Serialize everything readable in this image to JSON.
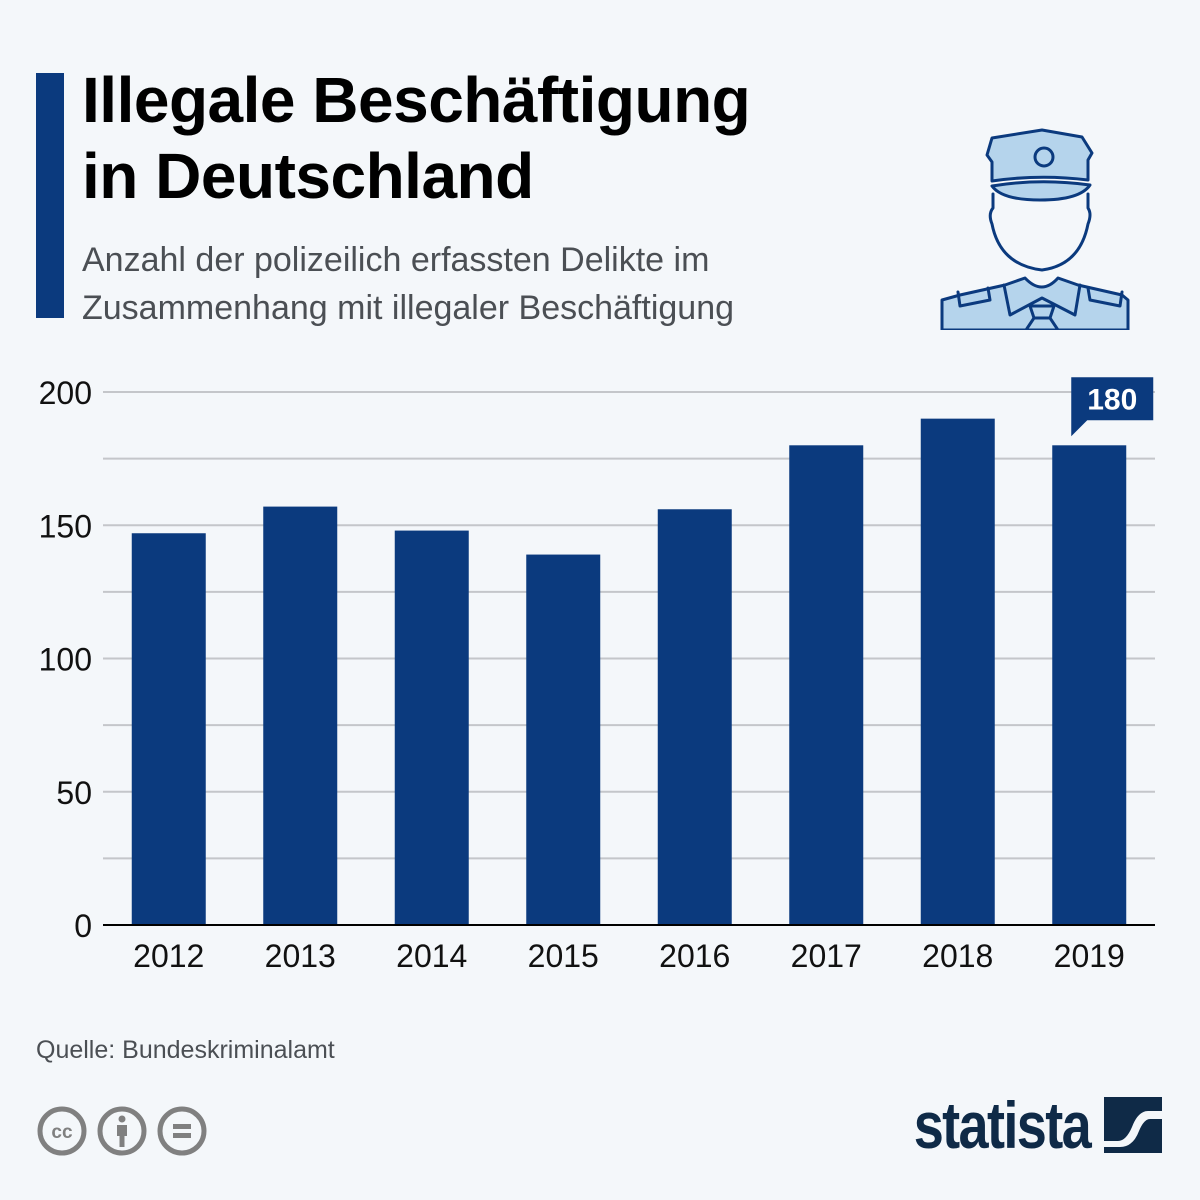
{
  "header": {
    "title_line1": "Illegale Beschäftigung",
    "title_line2": "in Deutschland",
    "subtitle_line1": "Anzahl der polizeilich erfassten Delikte im",
    "subtitle_line2": "Zusammenhang mit illegaler Beschäftigung",
    "illustration_icon": "police-officer-icon"
  },
  "colors": {
    "accent": "#0b3a7e",
    "bar": "#0b3a7e",
    "grid": "#c4c6ca",
    "axis": "#000000",
    "illustration_fill": "#b5d4ec",
    "illustration_stroke": "#0b3a7e",
    "brand": "#0f2a47",
    "cc_gray": "#808080"
  },
  "chart_data": {
    "type": "bar",
    "title": "Illegale Beschäftigung in Deutschland",
    "subtitle": "Anzahl der polizeilich erfassten Delikte im Zusammenhang mit illegaler Beschäftigung",
    "categories": [
      "2012",
      "2013",
      "2014",
      "2015",
      "2016",
      "2017",
      "2018",
      "2019"
    ],
    "values": [
      147,
      157,
      148,
      139,
      156,
      180,
      190,
      180
    ],
    "yticks": [
      0,
      50,
      100,
      150,
      200
    ],
    "ylim": [
      0,
      200
    ],
    "minor_gridlines": [
      25,
      75,
      125,
      175
    ],
    "grid": true,
    "xlabel": "",
    "ylabel": "",
    "callout": {
      "category": "2019",
      "label": "180"
    },
    "legend": "none"
  },
  "footer": {
    "source": "Quelle: Bundeskriminalamt",
    "license_icons": [
      "cc-icon",
      "attribution-icon",
      "no-derivatives-icon"
    ],
    "brand": "statista",
    "brand_icon": "statista-logo-icon"
  }
}
